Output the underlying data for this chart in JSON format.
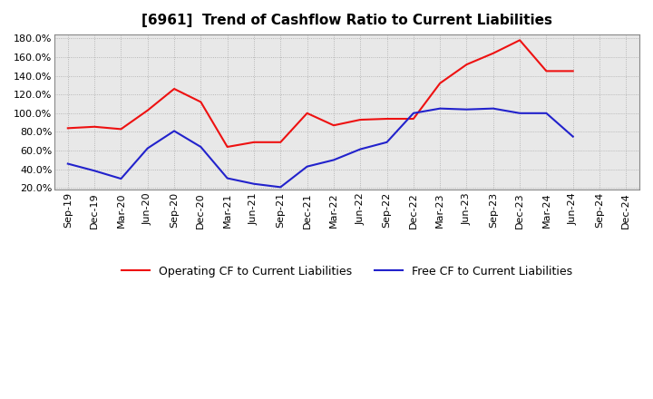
{
  "title": "[6961]  Trend of Cashflow Ratio to Current Liabilities",
  "x_labels": [
    "Sep-19",
    "Dec-19",
    "Mar-20",
    "Jun-20",
    "Sep-20",
    "Dec-20",
    "Mar-21",
    "Jun-21",
    "Sep-21",
    "Dec-21",
    "Mar-22",
    "Jun-22",
    "Sep-22",
    "Dec-22",
    "Mar-23",
    "Jun-23",
    "Sep-23",
    "Dec-23",
    "Mar-24",
    "Jun-24",
    "Sep-24",
    "Dec-24"
  ],
  "operating_cf": [
    0.84,
    0.855,
    0.83,
    1.03,
    1.26,
    1.12,
    0.64,
    0.69,
    0.69,
    1.0,
    0.87,
    0.93,
    0.94,
    0.94,
    1.32,
    1.52,
    1.64,
    1.78,
    1.45,
    1.45,
    null,
    null
  ],
  "free_cf": [
    0.46,
    0.385,
    0.3,
    0.625,
    0.81,
    0.64,
    0.305,
    0.245,
    0.21,
    0.43,
    0.5,
    0.615,
    0.69,
    1.0,
    1.05,
    1.04,
    1.05,
    1.0,
    1.0,
    0.75,
    null,
    null
  ],
  "y_ticks": [
    0.2,
    0.4,
    0.6,
    0.8,
    1.0,
    1.2,
    1.4,
    1.6,
    1.8
  ],
  "operating_color": "#EE1111",
  "free_color": "#2222CC",
  "background_color": "#FFFFFF",
  "plot_bg_color": "#E8E8E8",
  "grid_color": "#AAAAAA",
  "legend_operating": "Operating CF to Current Liabilities",
  "legend_free": "Free CF to Current Liabilities",
  "title_fontsize": 11,
  "tick_fontsize": 8,
  "legend_fontsize": 9
}
